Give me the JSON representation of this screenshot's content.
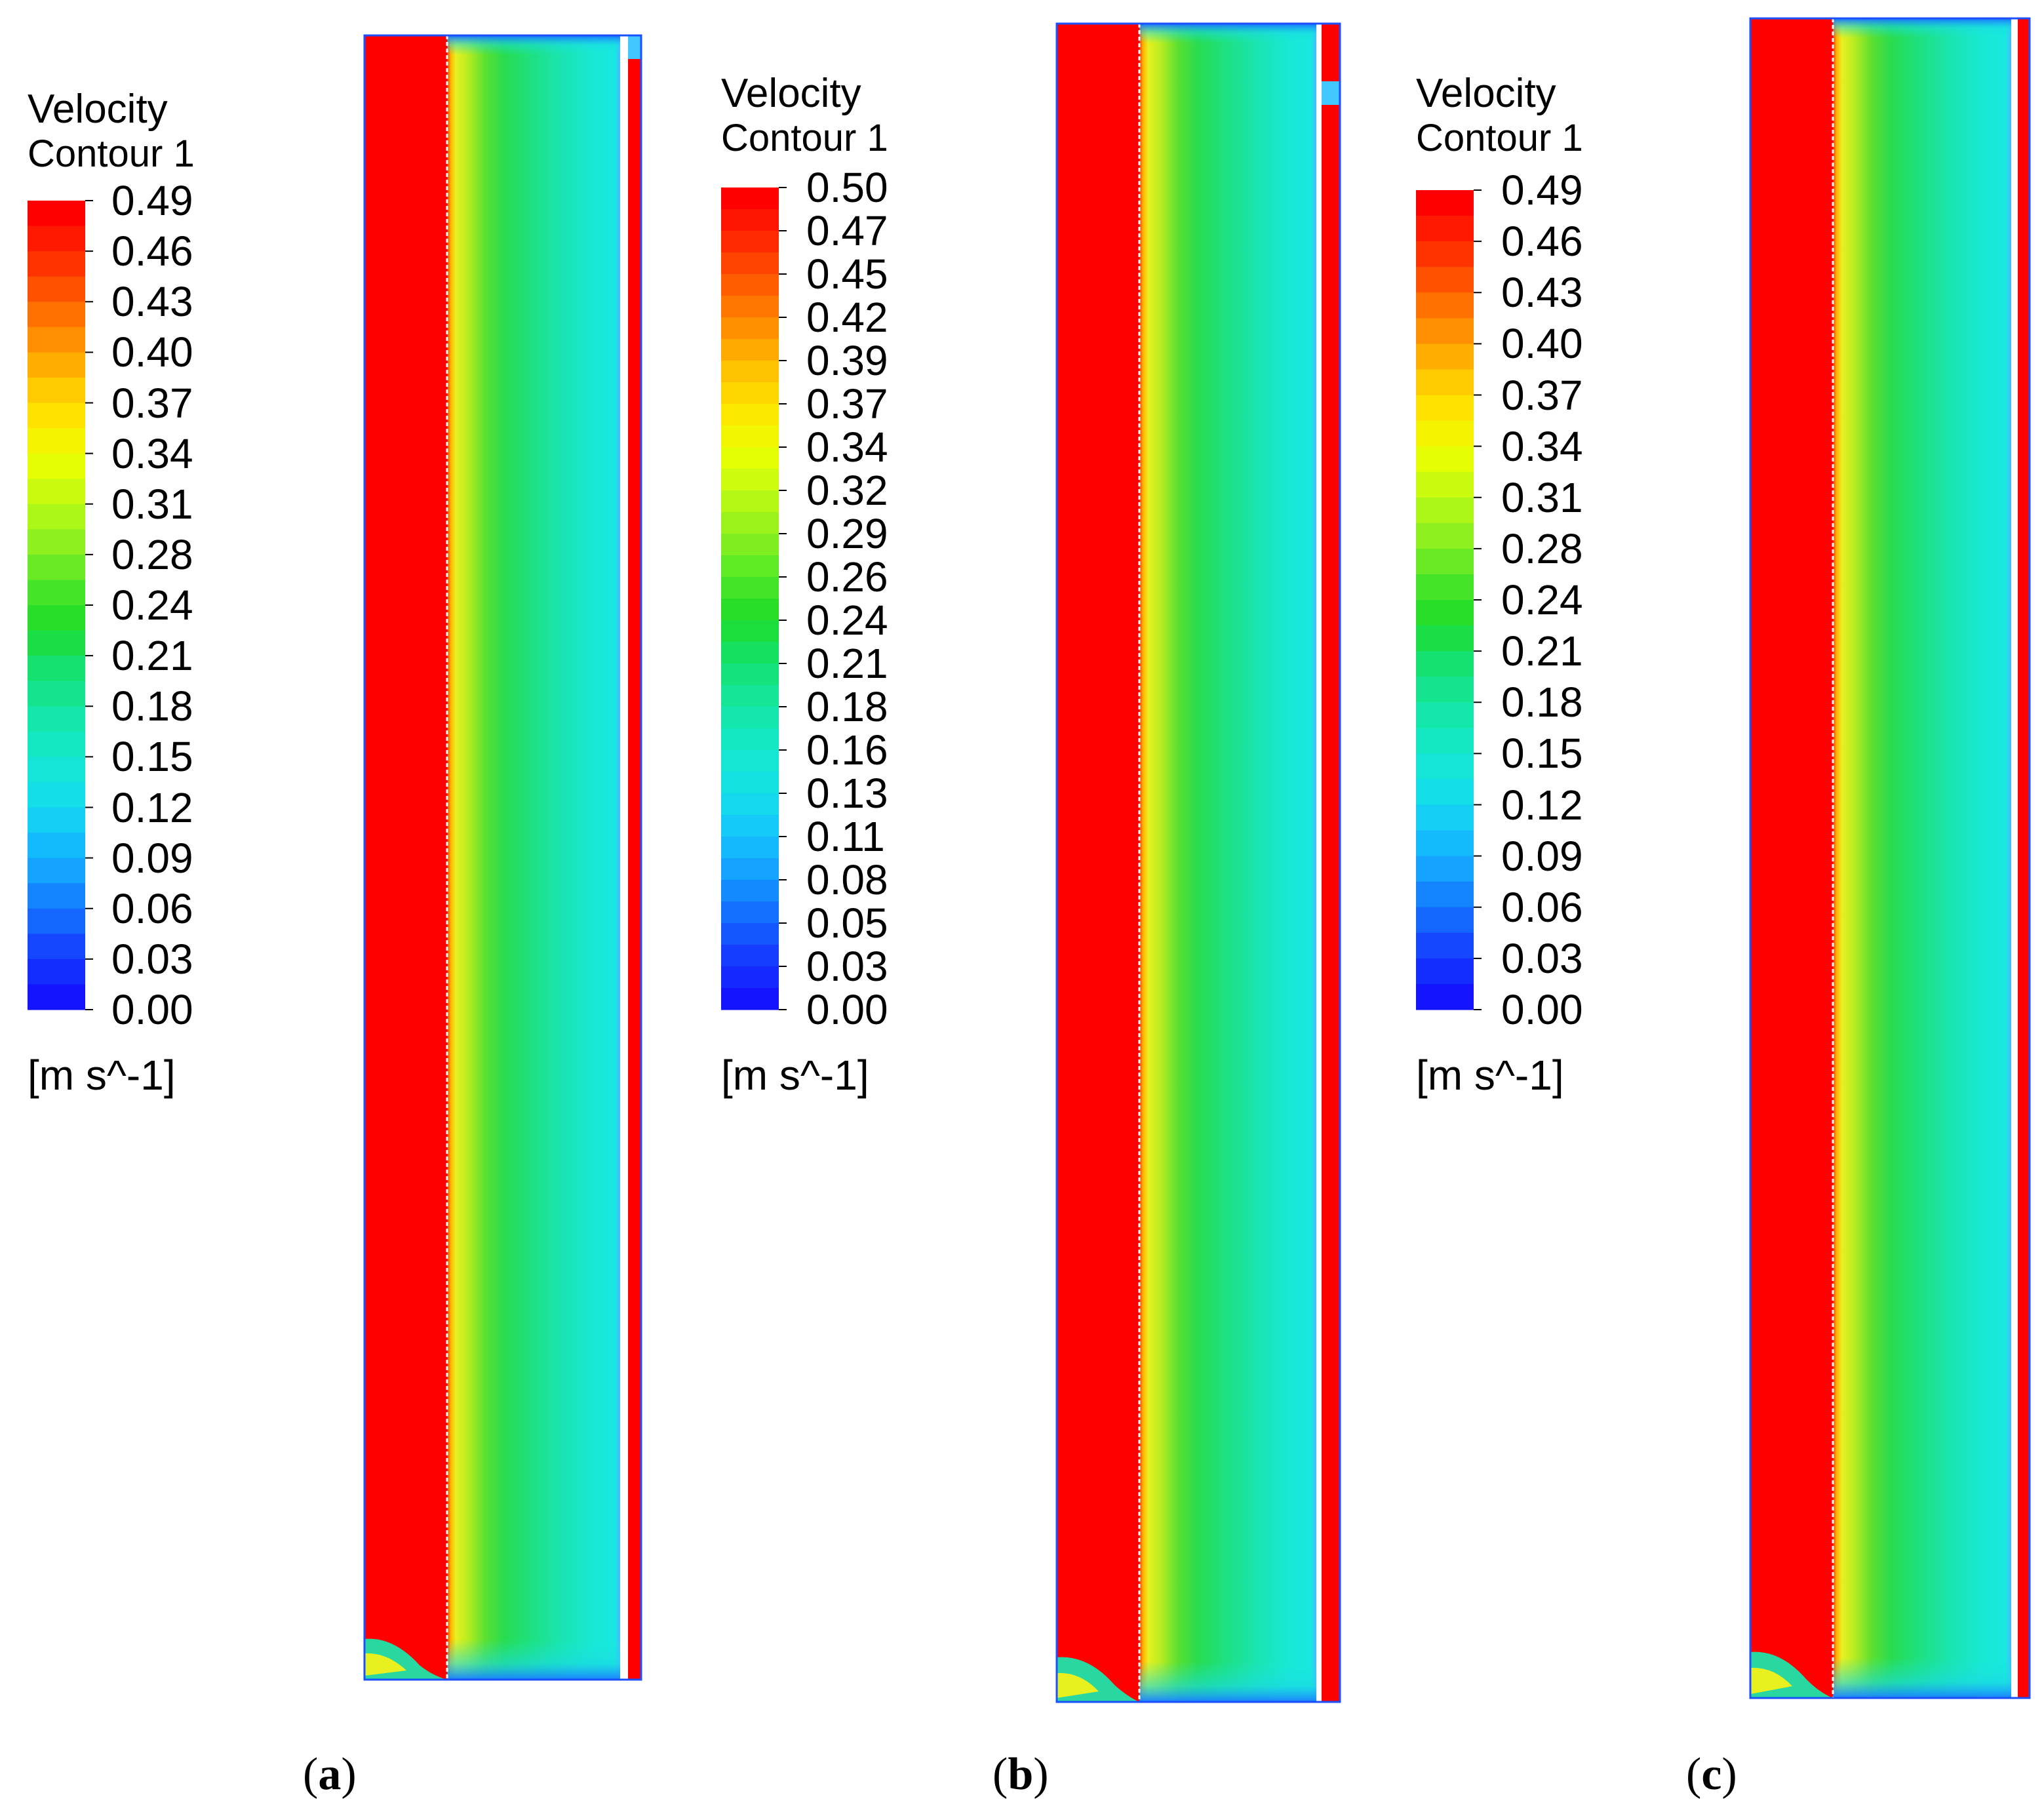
{
  "legends": [
    {
      "title": "Velocity",
      "subtitle": "Contour 1",
      "unit": "[m s^-1]",
      "ticks": [
        "0.49",
        "0.46",
        "0.43",
        "0.40",
        "0.37",
        "0.34",
        "0.31",
        "0.28",
        "0.24",
        "0.21",
        "0.18",
        "0.15",
        "0.12",
        "0.09",
        "0.06",
        "0.03",
        "0.00"
      ]
    },
    {
      "title": "Velocity",
      "subtitle": "Contour 1",
      "unit": "[m s^-1]",
      "ticks": [
        "0.50",
        "0.47",
        "0.45",
        "0.42",
        "0.39",
        "0.37",
        "0.34",
        "0.32",
        "0.29",
        "0.26",
        "0.24",
        "0.21",
        "0.18",
        "0.16",
        "0.13",
        "0.11",
        "0.08",
        "0.05",
        "0.03",
        "0.00"
      ]
    },
    {
      "title": "Velocity",
      "subtitle": "Contour 1",
      "unit": "[m s^-1]",
      "ticks": [
        "0.49",
        "0.46",
        "0.43",
        "0.40",
        "0.37",
        "0.34",
        "0.31",
        "0.28",
        "0.24",
        "0.21",
        "0.18",
        "0.15",
        "0.12",
        "0.09",
        "0.06",
        "0.03",
        "0.00"
      ]
    }
  ],
  "captions": [
    {
      "open": "(",
      "letter": "a",
      "close": ")"
    },
    {
      "open": "(",
      "letter": "b",
      "close": ")"
    },
    {
      "open": "(",
      "letter": "c",
      "close": ")"
    }
  ],
  "colors": {
    "inlet_red": "#ff0000",
    "core_cyan": "#19e8dc",
    "boundary_yellow": "#e8f020",
    "boundary_green": "#2adc40",
    "wall_blue": "#1060ff"
  }
}
